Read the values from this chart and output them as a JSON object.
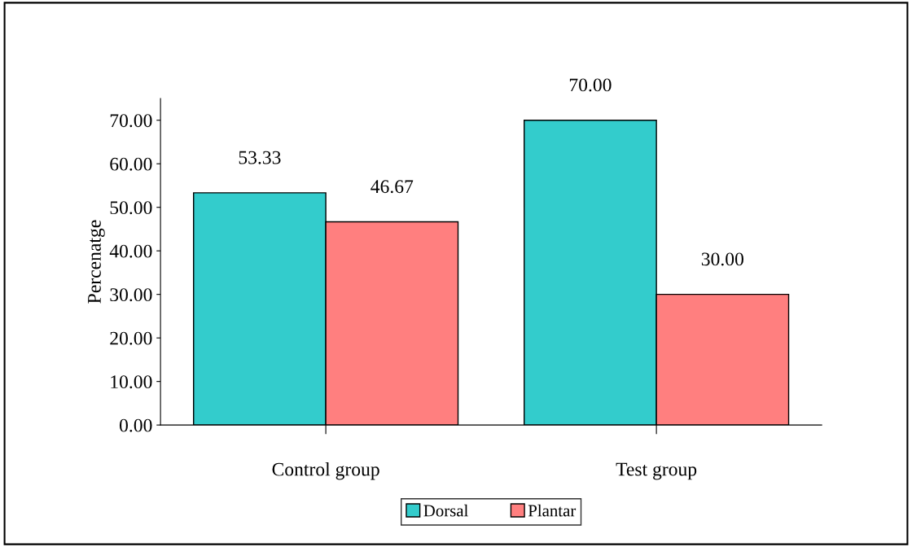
{
  "chart_data": {
    "type": "bar",
    "ylabel": "Percenatge",
    "categories": [
      "Control group",
      "Test group"
    ],
    "series": [
      {
        "name": "Dorsal",
        "color": "#33cccc",
        "values": [
          53.33,
          70.0
        ],
        "value_labels": [
          "53.33",
          "70.00"
        ]
      },
      {
        "name": "Plantar",
        "color": "#ff7f7f",
        "values": [
          46.67,
          30.0
        ],
        "value_labels": [
          "46.67",
          "30.00"
        ]
      }
    ],
    "ylim": [
      0,
      75
    ],
    "yticks": [
      {
        "value": 0,
        "label": "0.00"
      },
      {
        "value": 10,
        "label": "10.00"
      },
      {
        "value": 20,
        "label": "20.00"
      },
      {
        "value": 30,
        "label": "30.00"
      },
      {
        "value": 40,
        "label": "40.00"
      },
      {
        "value": 50,
        "label": "50.00"
      },
      {
        "value": 60,
        "label": "60.00"
      },
      {
        "value": 70,
        "label": "70.00"
      }
    ],
    "grid": false,
    "legend": "bottom"
  }
}
